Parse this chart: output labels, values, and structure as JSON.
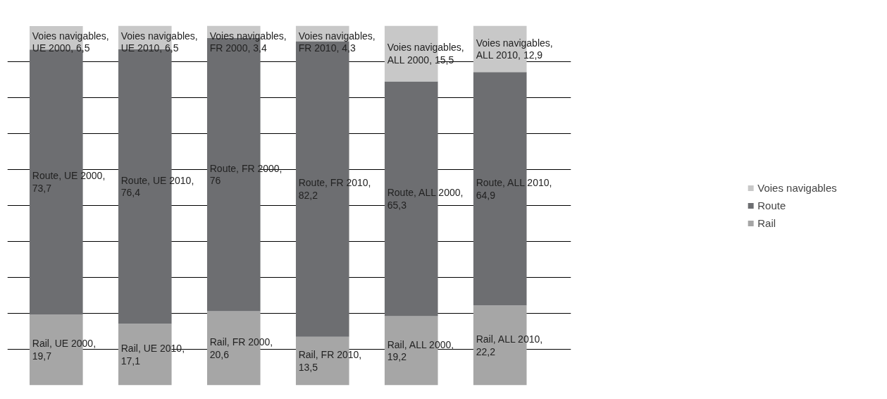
{
  "chart_data": {
    "type": "bar",
    "stacked": true,
    "categories": [
      null,
      null,
      null,
      null,
      null,
      null
    ],
    "series": [
      {
        "name": "Rail",
        "color": "#a6a6a6",
        "values": [
          19.7,
          17.1,
          20.6,
          13.5,
          19.2,
          22.2
        ],
        "value_labels": [
          "Rail, UE 2000, 19,7",
          "Rail, UE 2010, 17,1",
          "Rail, FR 2000, 20,6",
          "Rail, FR 2010, 13,5",
          "Rail, ALL 2000, 19,2",
          "Rail, ALL 2010, 22,2"
        ]
      },
      {
        "name": "Route",
        "color": "#6d6e71",
        "values": [
          73.7,
          76.4,
          76,
          82.2,
          65.3,
          64.9
        ],
        "value_labels": [
          "Route, UE 2000, 73,7",
          "Route, UE 2010, 76,4",
          "Route, FR 2000, 76",
          "Route, FR 2010, 82,2",
          "Route, ALL 2000, 65,3",
          "Route, ALL 2010, 64,9"
        ]
      },
      {
        "name": "Voies navigables",
        "color": "#c8c8c8",
        "values": [
          6.5,
          6.5,
          3.4,
          4.3,
          15.5,
          12.9
        ],
        "value_labels": [
          "Voies navigables, UE 2000, 6,5",
          "Voies navigables, UE 2010, 6,5",
          "Voies navigables, FR 2000, 3,4",
          "Voies navigables, FR 2010, 4,3",
          "Voies navigables, ALL 2000, 15,5",
          "Voies navigables, ALL 2010, 12,9"
        ]
      }
    ],
    "ylim": [
      0,
      100
    ],
    "yticks": [
      {
        "value": 10,
        "label": null
      },
      {
        "value": 20,
        "label": null
      },
      {
        "value": 30,
        "label": null
      },
      {
        "value": 40,
        "label": null
      },
      {
        "value": 50,
        "label": null
      },
      {
        "value": 60,
        "label": null
      },
      {
        "value": 70,
        "label": null
      },
      {
        "value": 80,
        "label": null
      },
      {
        "value": 90,
        "label": null
      }
    ],
    "grid": "y",
    "tick_labels": false,
    "legend": "right"
  }
}
